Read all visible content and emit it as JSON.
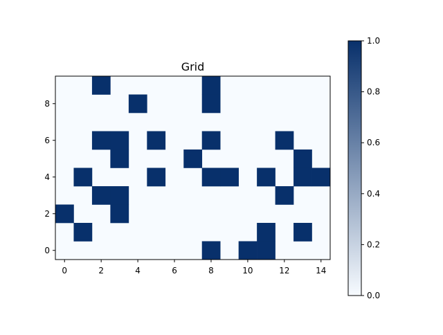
{
  "chart_data": {
    "type": "heatmap",
    "title": "Grid",
    "xlabel": "",
    "ylabel": "",
    "cols": 15,
    "rows": 10,
    "x_ticks": [
      0,
      2,
      4,
      6,
      8,
      10,
      12,
      14
    ],
    "y_ticks": [
      0,
      2,
      4,
      6,
      8
    ],
    "x_range": [
      -0.5,
      14.5
    ],
    "y_range": [
      -0.5,
      9.5
    ],
    "grid": false,
    "colormap": "Blues",
    "colors": {
      "low": "#f7fbff",
      "high": "#08306b"
    },
    "colorbar": {
      "range": [
        0.0,
        1.0
      ],
      "ticks": [
        "0.0",
        "0.2",
        "0.4",
        "0.6",
        "0.8",
        "1.0"
      ]
    },
    "values": [
      [
        0,
        0,
        0,
        0,
        0,
        0,
        0,
        0,
        1,
        0,
        1,
        1,
        0,
        0,
        0
      ],
      [
        0,
        1,
        0,
        0,
        0,
        0,
        0,
        0,
        0,
        0,
        0,
        1,
        0,
        1,
        0
      ],
      [
        1,
        0,
        0,
        1,
        0,
        0,
        0,
        0,
        0,
        0,
        0,
        0,
        0,
        0,
        0
      ],
      [
        0,
        0,
        1,
        1,
        0,
        0,
        0,
        0,
        0,
        0,
        0,
        0,
        1,
        0,
        0
      ],
      [
        0,
        1,
        0,
        0,
        0,
        1,
        0,
        0,
        1,
        1,
        0,
        1,
        0,
        1,
        1
      ],
      [
        0,
        0,
        0,
        1,
        0,
        0,
        0,
        1,
        0,
        0,
        0,
        0,
        0,
        1,
        0
      ],
      [
        0,
        0,
        1,
        1,
        0,
        1,
        0,
        0,
        1,
        0,
        0,
        0,
        1,
        0,
        0
      ],
      [
        0,
        0,
        0,
        0,
        0,
        0,
        0,
        0,
        0,
        0,
        0,
        0,
        0,
        0,
        0
      ],
      [
        0,
        0,
        0,
        0,
        1,
        0,
        0,
        0,
        1,
        0,
        0,
        0,
        0,
        0,
        0
      ],
      [
        0,
        0,
        1,
        0,
        0,
        0,
        0,
        0,
        1,
        0,
        0,
        0,
        0,
        0,
        0
      ]
    ]
  }
}
